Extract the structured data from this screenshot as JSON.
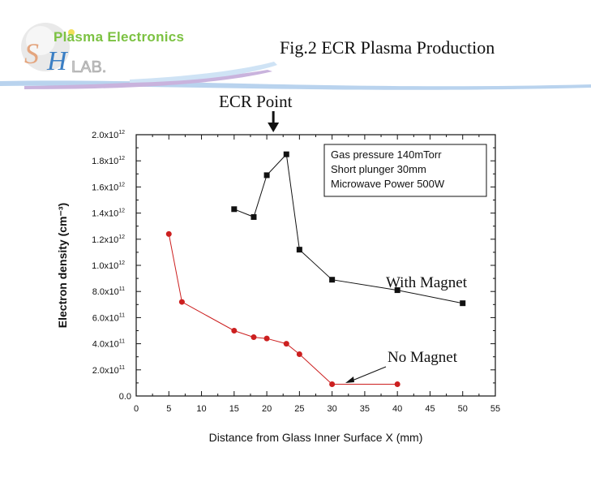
{
  "header": {
    "logo_text": "Plasma Electronics",
    "logo_mark_s": "S",
    "logo_mark_h": "H",
    "logo_lab": "LAB.",
    "title": "Fig.2  ECR Plasma Production"
  },
  "annotation": {
    "ecr_point": "ECR Point",
    "ecr_x": 21
  },
  "colors": {
    "with_magnet": "#111111",
    "no_magnet": "#cc1f1f",
    "logo_green": "#7cc242",
    "logo_blue": "#3b7fc4"
  },
  "chart_data": {
    "type": "scatter",
    "title": "",
    "xlabel": "Distance from Glass Inner Surface  X (mm)",
    "ylabel": "Electron density (cm⁻³)",
    "xlim": [
      0,
      55
    ],
    "ylim": [
      0,
      2000000000000.0
    ],
    "x_ticks": [
      "0",
      "5",
      "10",
      "15",
      "20",
      "25",
      "30",
      "35",
      "40",
      "45",
      "50",
      "55"
    ],
    "y_ticks": [
      {
        "mantissa": "0.0",
        "exp": ""
      },
      {
        "mantissa": "2.0x10",
        "exp": "11"
      },
      {
        "mantissa": "4.0x10",
        "exp": "11"
      },
      {
        "mantissa": "6.0x10",
        "exp": "11"
      },
      {
        "mantissa": "8.0x10",
        "exp": "11"
      },
      {
        "mantissa": "1.0x10",
        "exp": "12"
      },
      {
        "mantissa": "1.2x10",
        "exp": "12"
      },
      {
        "mantissa": "1.4x10",
        "exp": "12"
      },
      {
        "mantissa": "1.6x10",
        "exp": "12"
      },
      {
        "mantissa": "1.8x10",
        "exp": "12"
      },
      {
        "mantissa": "2.0x10",
        "exp": "12"
      }
    ],
    "legend_lines": [
      "Gas pressure 140mTorr",
      "Short plunger 30mm",
      "Microwave Power 500W"
    ],
    "legend_position": "top-right",
    "series": [
      {
        "name": "With Magnet",
        "marker": "square",
        "x": [
          15,
          18,
          20,
          23,
          25,
          30,
          40,
          50
        ],
        "y": [
          1430000000000.0,
          1370000000000.0,
          1690000000000.0,
          1850000000000.0,
          1120000000000.0,
          890000000000.0,
          810000000000.0,
          710000000000.0
        ]
      },
      {
        "name": "No Magnet",
        "marker": "circle",
        "x": [
          5,
          7,
          15,
          18,
          20,
          23,
          25,
          30,
          40
        ],
        "y": [
          1240000000000.0,
          720000000000.0,
          500000000000.0,
          450000000000.0,
          440000000000.0,
          400000000000.0,
          320000000000.0,
          90000000000.0,
          90000000000.0
        ]
      }
    ]
  }
}
